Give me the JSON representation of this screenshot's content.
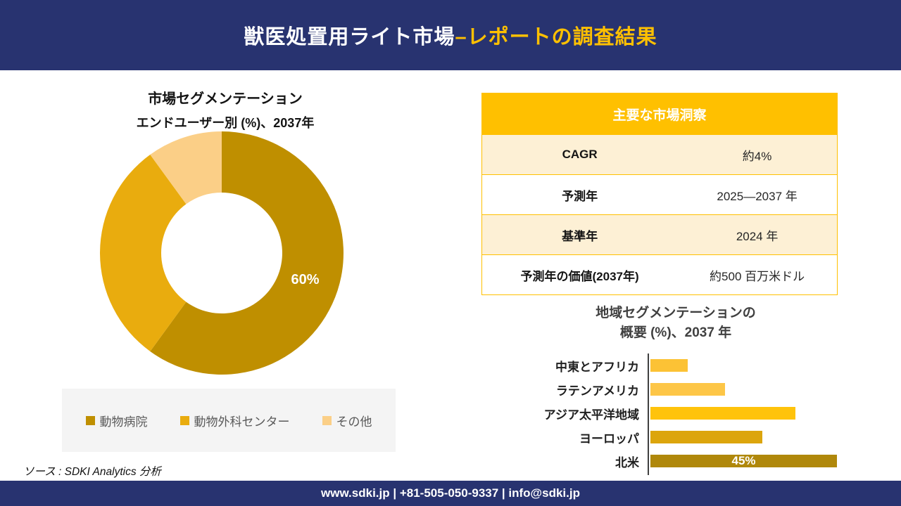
{
  "header": {
    "title_main": "獣医処置用ライト市場",
    "title_accent": "–レポートの調査結果"
  },
  "donut_section": {
    "title": "市場セグメンテーション",
    "subtitle": "エンドユーザー別 (%)、2037年"
  },
  "insights_table": {
    "header": "主要な市場洞察",
    "rows": [
      {
        "label": "CAGR",
        "value": "約4%"
      },
      {
        "label": "予測年",
        "value": "2025—2037 年"
      },
      {
        "label": "基準年",
        "value": "2024 年"
      },
      {
        "label": "予測年の価値(2037年)",
        "value": "約500 百万米ドル"
      }
    ]
  },
  "bar_section": {
    "title_line1": "地域セグメンテーションの",
    "title_line2": "概要 (%)、2037 年"
  },
  "source_note": "ソース : SDKI Analytics 分析",
  "footer": {
    "contact": "www.sdki.jp | +81-505-050-9337 | info@sdki.jp"
  },
  "colors": {
    "navy": "#283370",
    "accent_gold": "#FFC000",
    "table_row_cream": "#FDF0D5",
    "legend_bg": "#f4f4f4",
    "axis": "#404040"
  },
  "chart_data": [
    {
      "type": "pie",
      "donut": true,
      "title": "市場セグメンテーション",
      "subtitle": "エンドユーザー別 (%)、2037年",
      "labels": [
        "動物病院",
        "動物外科センター",
        "その他"
      ],
      "values": [
        60,
        30,
        10
      ],
      "colors": [
        "#BF8F00",
        "#E9AC0E",
        "#FBCF87"
      ],
      "data_labels": [
        "60%",
        "",
        ""
      ],
      "legend_position": "bottom",
      "start_angle_deg": 0,
      "direction": "clockwise"
    },
    {
      "type": "bar",
      "orientation": "horizontal",
      "title": "地域セグメンテーションの概要 (%)、2037 年",
      "categories": [
        "中東とアフリカ",
        "ラテンアメリカ",
        "アジア太平洋地域",
        "ヨーロッパ",
        "北米"
      ],
      "values": [
        9,
        18,
        35,
        27,
        45
      ],
      "colors": [
        "#FCC235",
        "#FDC647",
        "#FFC30B",
        "#DCA50C",
        "#B0880B"
      ],
      "data_labels": [
        "",
        "",
        "",
        "",
        "45%"
      ],
      "xlim": [
        0,
        45
      ],
      "grid": false,
      "legend_position": "none"
    }
  ]
}
